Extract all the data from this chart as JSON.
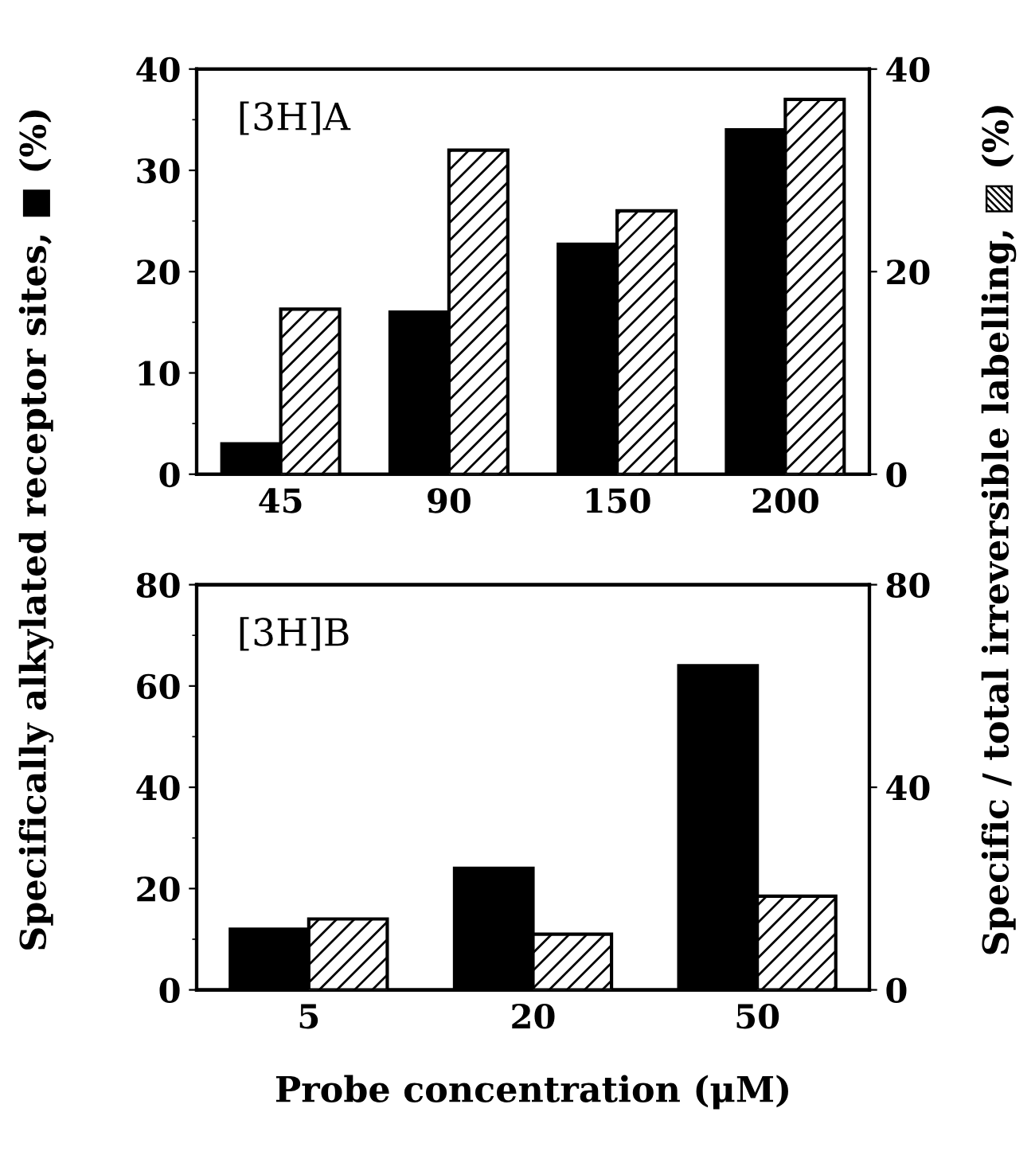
{
  "chart_data": [
    {
      "type": "bar",
      "categories": [
        "45",
        "90",
        "150",
        "200"
      ],
      "annotations": [
        "[3H]A"
      ],
      "ylabel": "Specifically alkylated receptor sites, ■ (%)",
      "y2label": "Specific / total irreversible labelling, ▨ (%)",
      "ylim": [
        0,
        40
      ],
      "yticks": [
        0,
        10,
        20,
        30,
        40
      ],
      "y2lim": [
        0,
        40
      ],
      "y2ticks": [
        0,
        20,
        40
      ],
      "series": [
        {
          "color": "#000000",
          "values": [
            3,
            16,
            22.7,
            34
          ]
        },
        {
          "color": "#000000",
          "axis": "y2",
          "values": [
            16.3,
            32,
            26,
            37
          ]
        }
      ]
    },
    {
      "type": "bar",
      "categories": [
        "5",
        "20",
        "50"
      ],
      "annotations": [
        "[3H]B"
      ],
      "xlabel": "Probe concentration (μM)",
      "ylim": [
        0,
        80
      ],
      "yticks": [
        0,
        20,
        40,
        60,
        80
      ],
      "y2lim": [
        0,
        80
      ],
      "y2ticks": [
        0,
        40,
        80
      ],
      "series": [
        {
          "color": "#000000",
          "values": [
            12,
            24,
            64
          ]
        },
        {
          "color": "#000000",
          "axis": "y2",
          "values": [
            14,
            11,
            18.5
          ]
        }
      ]
    }
  ]
}
